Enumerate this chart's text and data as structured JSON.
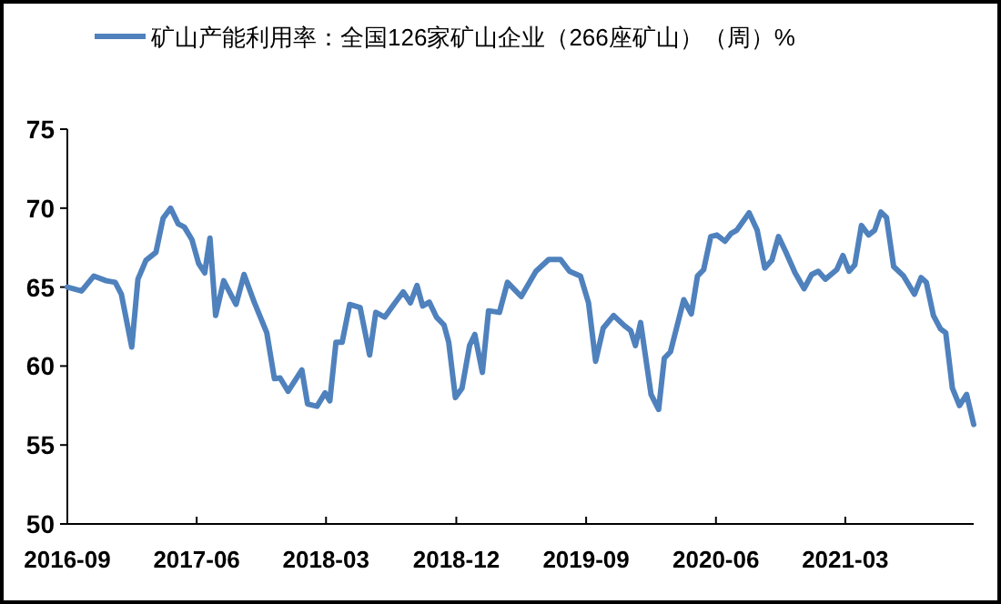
{
  "chart_data": {
    "type": "line",
    "x": [
      "2016-09-01",
      "2016-10-01",
      "2016-10-27",
      "2016-11-22",
      "2016-12-11",
      "2016-12-24",
      "2017-01-15",
      "2017-01-28",
      "2017-02-14",
      "2017-03-07",
      "2017-03-22",
      "2017-04-07",
      "2017-04-23",
      "2017-05-06",
      "2017-05-22",
      "2017-06-05",
      "2017-06-18",
      "2017-06-29",
      "2017-07-11",
      "2017-07-28",
      "2017-08-23",
      "2017-09-09",
      "2017-10-01",
      "2017-10-27",
      "2017-11-12",
      "2017-11-24",
      "2017-12-11",
      "2018-01-09",
      "2018-01-21",
      "2018-02-10",
      "2018-02-27",
      "2018-03-09",
      "2018-03-22",
      "2018-04-04",
      "2018-04-20",
      "2018-05-12",
      "2018-06-01",
      "2018-06-14",
      "2018-07-03",
      "2018-07-22",
      "2018-08-11",
      "2018-08-26",
      "2018-09-09",
      "2018-09-21",
      "2018-10-05",
      "2018-10-20",
      "2018-11-05",
      "2018-11-15",
      "2018-11-29",
      "2018-12-13",
      "2018-12-29",
      "2019-01-09",
      "2019-01-25",
      "2019-02-07",
      "2019-03-02",
      "2019-03-19",
      "2019-04-17",
      "2019-05-18",
      "2019-06-14",
      "2019-07-09",
      "2019-07-28",
      "2019-08-20",
      "2019-09-06",
      "2019-09-21",
      "2019-10-07",
      "2019-10-29",
      "2019-11-21",
      "2019-12-04",
      "2019-12-14",
      "2019-12-25",
      "2020-01-16",
      "2020-02-01",
      "2020-02-13",
      "2020-02-26",
      "2020-03-25",
      "2020-04-10",
      "2020-04-23",
      "2020-05-06",
      "2020-05-21",
      "2020-06-03",
      "2020-06-20",
      "2020-07-03",
      "2020-07-15",
      "2020-08-10",
      "2020-08-27",
      "2020-09-12",
      "2020-09-27",
      "2020-10-11",
      "2020-10-26",
      "2020-11-15",
      "2020-12-04",
      "2020-12-20",
      "2021-01-03",
      "2021-01-18",
      "2021-02-11",
      "2021-02-24",
      "2021-03-09",
      "2021-03-21",
      "2021-04-04",
      "2021-04-19",
      "2021-05-02",
      "2021-05-15",
      "2021-05-27",
      "2021-06-11",
      "2021-07-02",
      "2021-07-25",
      "2021-08-08",
      "2021-08-19",
      "2021-09-03",
      "2021-09-18",
      "2021-09-29",
      "2021-10-13",
      "2021-10-28",
      "2021-11-12",
      "2021-11-27"
    ],
    "series": [
      {
        "name": "矿山产能利用率：全国126家矿山企业（266座矿山）（周）%",
        "color": "#4f81bd",
        "values": [
          65.0,
          64.75,
          65.7,
          65.4,
          65.3,
          64.55,
          61.2,
          65.5,
          66.7,
          67.2,
          69.35,
          70.0,
          69.0,
          68.8,
          68.0,
          66.5,
          65.9,
          68.1,
          63.2,
          65.4,
          63.9,
          65.8,
          64.0,
          62.1,
          59.2,
          59.25,
          58.4,
          59.75,
          57.6,
          57.45,
          58.3,
          57.8,
          61.5,
          61.5,
          63.9,
          63.7,
          60.7,
          63.4,
          63.1,
          63.9,
          64.7,
          64.0,
          65.1,
          63.8,
          64.05,
          63.1,
          62.6,
          61.5,
          58.0,
          58.6,
          61.3,
          62.0,
          59.6,
          63.5,
          63.4,
          65.3,
          64.4,
          66.0,
          66.75,
          66.75,
          66.0,
          65.7,
          64.0,
          60.3,
          62.4,
          63.2,
          62.55,
          62.25,
          61.3,
          62.75,
          58.2,
          57.25,
          60.5,
          60.9,
          64.2,
          63.3,
          65.7,
          66.1,
          68.2,
          68.3,
          67.9,
          68.4,
          68.6,
          69.7,
          68.6,
          66.2,
          66.7,
          68.2,
          67.25,
          65.9,
          64.9,
          65.8,
          66.0,
          65.5,
          66.1,
          67.0,
          66.0,
          66.4,
          68.9,
          68.3,
          68.6,
          69.75,
          69.4,
          66.3,
          65.7,
          64.55,
          65.6,
          65.3,
          63.2,
          62.35,
          62.1,
          58.6,
          57.5,
          58.2,
          56.3
        ]
      }
    ],
    "xlim": [
      "2016-09-01",
      "2021-11-27"
    ],
    "xticks": [
      "2016-09",
      "2017-06",
      "2018-03",
      "2018-12",
      "2019-09",
      "2020-06",
      "2021-03"
    ],
    "ylim": [
      50,
      75
    ],
    "yticks": [
      50,
      55,
      60,
      65,
      70,
      75
    ],
    "grid": false,
    "legend": "top",
    "line_style": "solid",
    "marker": "none"
  }
}
